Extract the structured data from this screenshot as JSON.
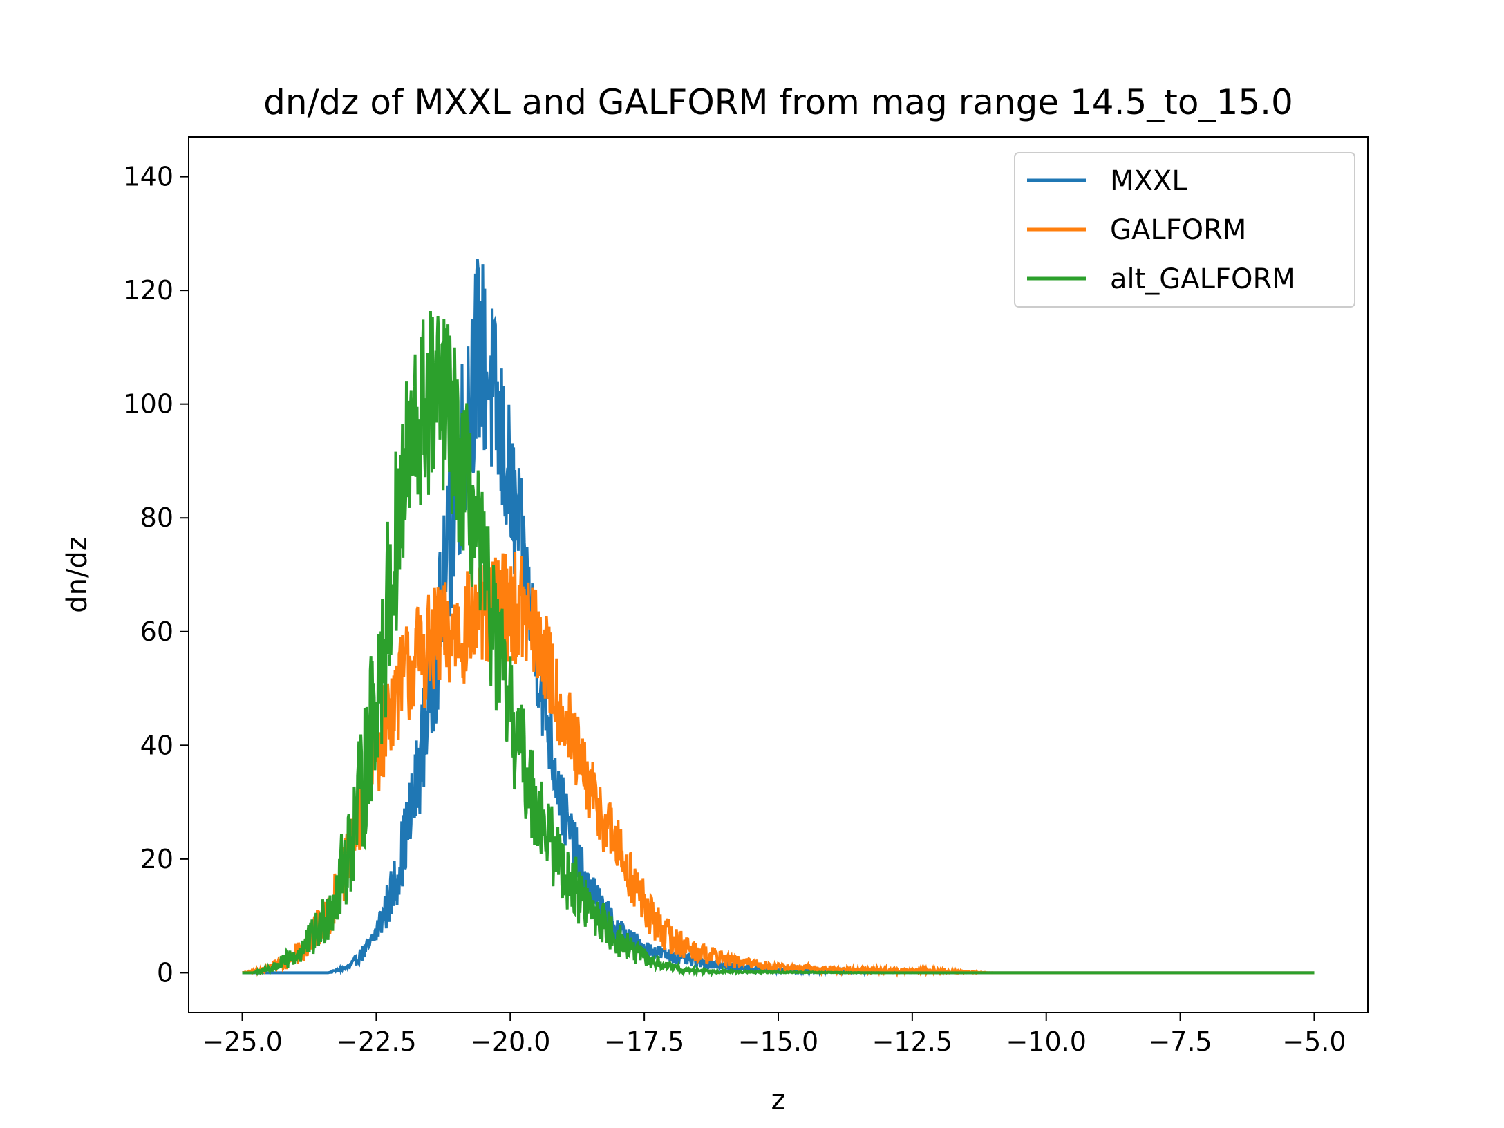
{
  "chart_data": {
    "type": "line",
    "title": "dn/dz of MXXL and GALFORM from mag range 14.5_to_15.0",
    "xlabel": "z",
    "ylabel": "dn/dz",
    "xlim": [
      -26.0,
      -4.0
    ],
    "ylim": [
      -7,
      147
    ],
    "xticks": [
      -25.0,
      -22.5,
      -20.0,
      -17.5,
      -15.0,
      -12.5,
      -10.0,
      -7.5,
      -5.0
    ],
    "xtick_labels": [
      "−25.0",
      "−22.5",
      "−20.0",
      "−17.5",
      "−15.0",
      "−12.5",
      "−10.0",
      "−7.5",
      "−5.0"
    ],
    "yticks": [
      0,
      20,
      40,
      60,
      80,
      100,
      120,
      140
    ],
    "ytick_labels": [
      "0",
      "20",
      "40",
      "60",
      "80",
      "100",
      "120",
      "140"
    ],
    "legend_position": "top-right",
    "x_range": [
      -25.0,
      -5.0
    ],
    "series": [
      {
        "name": "MXXL",
        "color": "#1f77b4",
        "profile": {
          "x": [
            -25.0,
            -23.4,
            -23.0,
            -22.6,
            -22.2,
            -21.8,
            -21.4,
            -21.2,
            -21.0,
            -20.8,
            -20.6,
            -20.4,
            -20.2,
            -20.0,
            -19.8,
            -19.6,
            -19.4,
            -19.2,
            -19.0,
            -18.6,
            -18.2,
            -17.8,
            -17.4,
            -17.0,
            -16.6,
            -16.2,
            -15.8,
            -15.0,
            -14.0,
            -13.0,
            -12.0,
            -5.0
          ],
          "y": [
            0,
            0,
            1,
            5,
            14,
            30,
            55,
            70,
            85,
            100,
            110,
            105,
            95,
            85,
            75,
            62,
            50,
            38,
            28,
            16,
            10,
            6,
            4,
            3,
            2,
            1.5,
            1,
            0.5,
            0.3,
            0.1,
            0,
            0
          ],
          "noise": [
            0,
            0,
            0.5,
            2,
            5,
            8,
            12,
            14,
            16,
            18,
            18,
            17,
            16,
            14,
            12,
            10,
            9,
            7,
            6,
            4,
            3,
            2,
            1.5,
            1.2,
            1,
            0.8,
            0.6,
            0.4,
            0.3,
            0.1,
            0,
            0
          ]
        }
      },
      {
        "name": "GALFORM",
        "color": "#ff7f0e",
        "profile": {
          "x": [
            -25.0,
            -24.6,
            -24.2,
            -23.8,
            -23.4,
            -23.0,
            -22.6,
            -22.2,
            -21.8,
            -21.4,
            -21.0,
            -20.6,
            -20.2,
            -19.8,
            -19.4,
            -19.0,
            -18.6,
            -18.2,
            -17.8,
            -17.4,
            -17.0,
            -16.6,
            -16.2,
            -15.8,
            -15.0,
            -14.0,
            -12.0,
            -11.0,
            -5.0
          ],
          "y": [
            0,
            0.5,
            2,
            5,
            10,
            20,
            35,
            48,
            55,
            58,
            60,
            62,
            65,
            64,
            57,
            45,
            34,
            26,
            18,
            10,
            6,
            4,
            3,
            2,
            1,
            0.6,
            0.3,
            0,
            0
          ],
          "noise": [
            0,
            0.5,
            1.5,
            3,
            4,
            6,
            8,
            9,
            10,
            10,
            10,
            10,
            10,
            10,
            9,
            8,
            7,
            6,
            5,
            4,
            3,
            2,
            1.5,
            1,
            0.7,
            0.5,
            0.4,
            0,
            0
          ]
        }
      },
      {
        "name": "alt_GALFORM",
        "color": "#2ca02c",
        "profile": {
          "x": [
            -25.0,
            -24.8,
            -24.4,
            -24.0,
            -23.6,
            -23.2,
            -22.8,
            -22.4,
            -22.0,
            -21.6,
            -21.2,
            -20.8,
            -20.4,
            -20.0,
            -19.6,
            -19.2,
            -18.8,
            -18.4,
            -18.0,
            -17.6,
            -17.2,
            -16.8,
            -16.0,
            -15.0,
            -13.0,
            -8.8,
            -5.0
          ],
          "y": [
            0,
            0,
            1,
            3,
            7,
            15,
            30,
            55,
            85,
            100,
            100,
            85,
            65,
            45,
            32,
            22,
            15,
            10,
            6,
            3,
            1.5,
            0.5,
            0.2,
            0.1,
            0,
            0,
            0
          ],
          "noise": [
            0,
            0,
            1,
            2,
            4,
            7,
            12,
            16,
            18,
            18,
            17,
            15,
            13,
            11,
            9,
            7,
            6,
            4,
            3,
            2,
            1,
            0.5,
            0.2,
            0.1,
            0,
            0,
            0
          ]
        }
      }
    ]
  }
}
